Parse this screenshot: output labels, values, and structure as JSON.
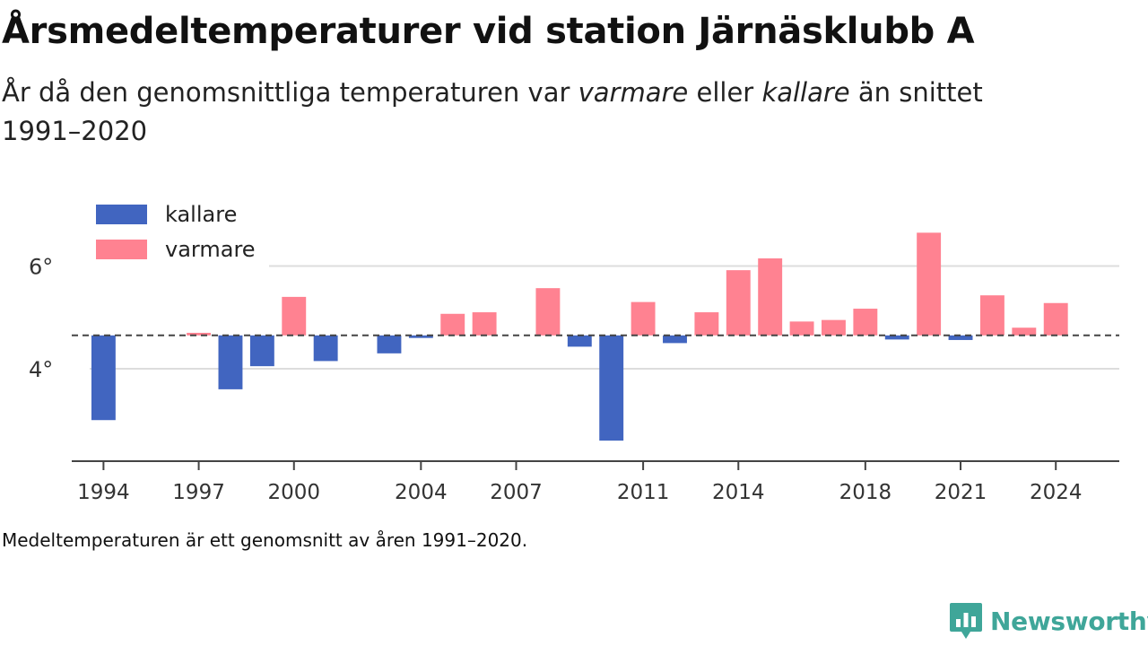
{
  "title": "Årsmedeltemperaturer vid station Järnäsklubb A",
  "subtitle": {
    "part1": "År då den genomsnittliga temperaturen var ",
    "warmer": "varmare",
    "part2": " eller ",
    "colder": "kallare",
    "part3": " än snittet 1991–2020"
  },
  "footnote": "Medeltemperaturen är ett genomsnitt av åren 1991–2020.",
  "brand": {
    "name": "Newsworthy",
    "icon": "newsworthy-logo-icon",
    "color": "#3fa699"
  },
  "chart_data": {
    "type": "bar",
    "baseline": 4.65,
    "baseline_style": "dashed",
    "ylim": [
      2.2,
      7.6
    ],
    "y_ticks": [
      4,
      6
    ],
    "y_tick_labels": [
      "4°",
      "6°"
    ],
    "x_ticks": [
      1994,
      1997,
      2000,
      2004,
      2007,
      2011,
      2014,
      2018,
      2021,
      2024
    ],
    "grid": true,
    "legend_position": "top-left",
    "legend": [
      {
        "key": "colder",
        "label": "kallare",
        "color": "#4165c0"
      },
      {
        "key": "warmer",
        "label": "varmare",
        "color": "#ff8291"
      }
    ],
    "years": [
      1994,
      1995,
      1996,
      1997,
      1998,
      1999,
      2000,
      2001,
      2002,
      2003,
      2004,
      2005,
      2006,
      2007,
      2008,
      2009,
      2010,
      2011,
      2012,
      2013,
      2014,
      2015,
      2016,
      2017,
      2018,
      2019,
      2020,
      2021,
      2022,
      2023,
      2024
    ],
    "values": [
      3.0,
      null,
      null,
      4.7,
      3.6,
      4.05,
      5.4,
      4.15,
      null,
      4.3,
      4.6,
      5.07,
      5.1,
      null,
      5.57,
      4.43,
      2.6,
      5.3,
      4.5,
      5.1,
      5.92,
      6.15,
      4.92,
      4.95,
      5.17,
      4.57,
      6.65,
      4.56,
      5.43,
      4.8,
      5.28
    ]
  }
}
